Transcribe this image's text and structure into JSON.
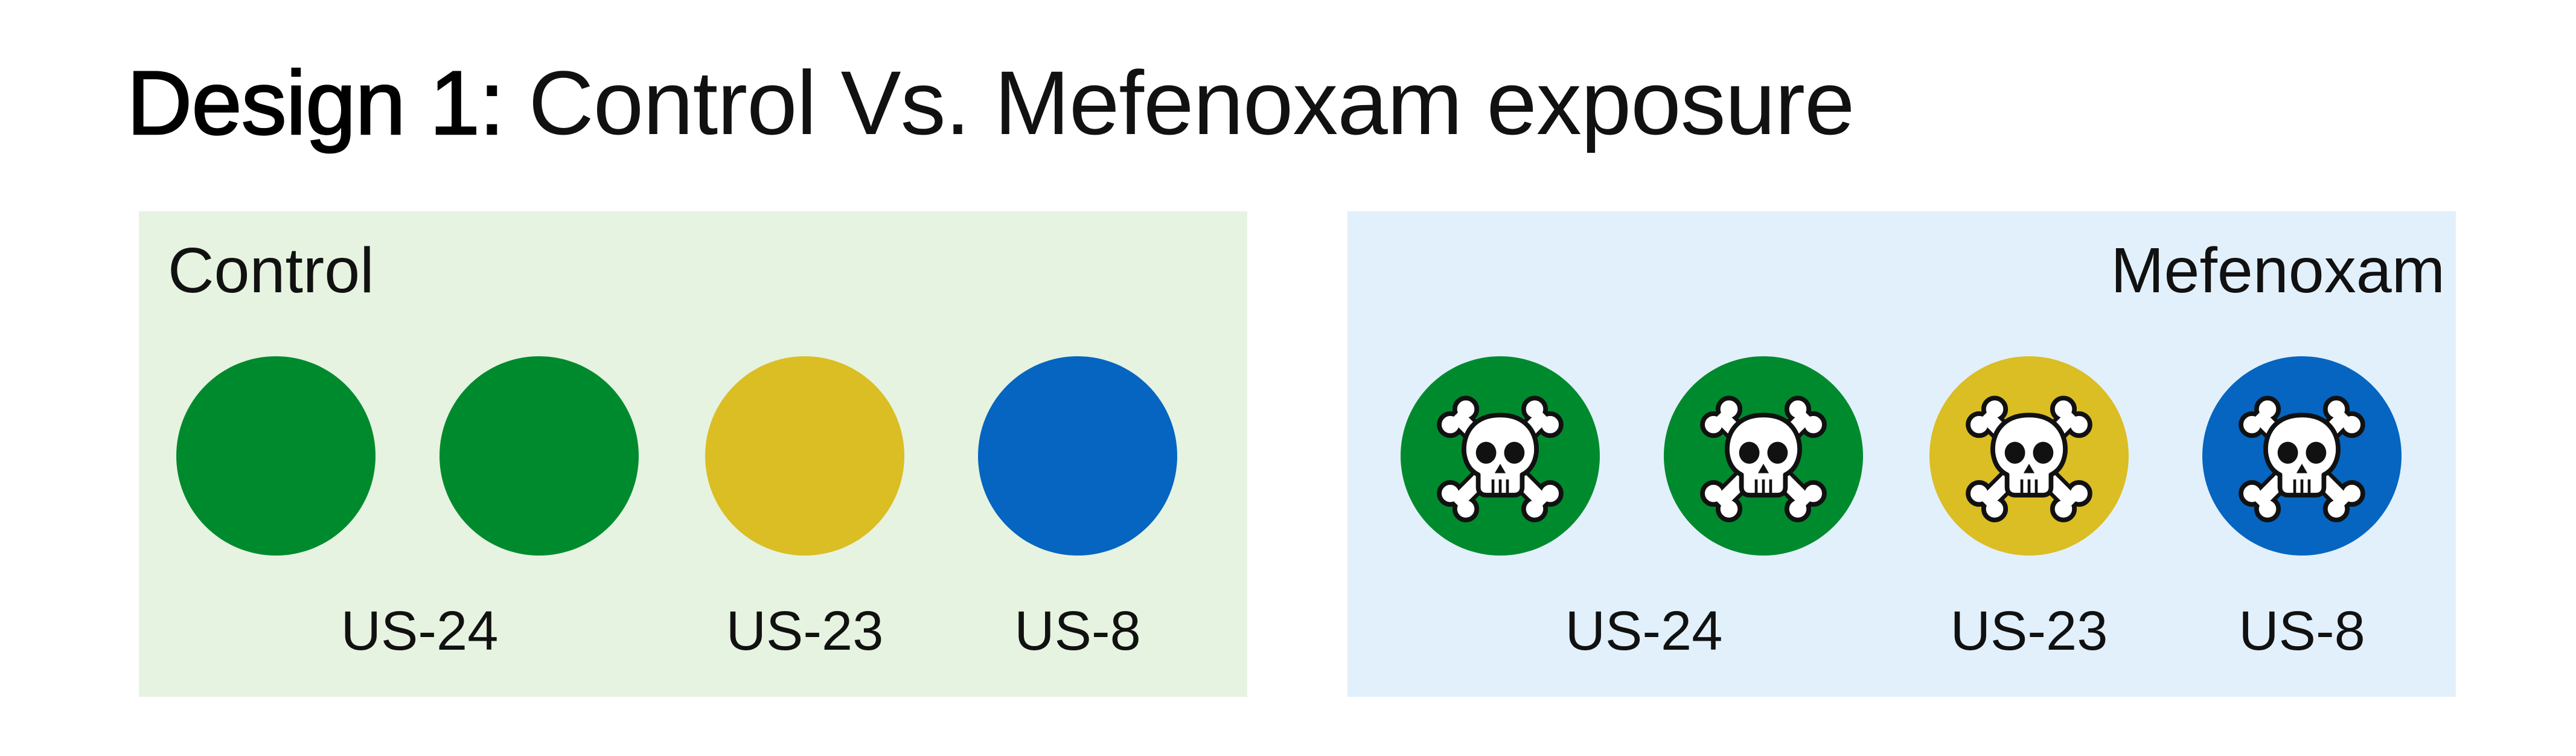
{
  "title": {
    "prefix": "Design 1:",
    "text": "Control Vs. Mefenoxam exposure"
  },
  "colors": {
    "control_panel_bg": "#e6f3e0",
    "mefenoxam_panel_bg": "#e2f0fb",
    "us24_green": "#008a2e",
    "us23_yellow": "#dbbd24",
    "us8_blue": "#0565c1"
  },
  "panels": [
    {
      "label": "Control",
      "treated": false,
      "circles": [
        {
          "strain": "US-24",
          "color": "#008a2e"
        },
        {
          "strain": "US-24",
          "color": "#008a2e"
        },
        {
          "strain": "US-23",
          "color": "#dbbd24"
        },
        {
          "strain": "US-8",
          "color": "#0565c1"
        }
      ],
      "strain_labels": [
        "US-24",
        "US-23",
        "US-8"
      ]
    },
    {
      "label": "Mefenoxam",
      "treated": true,
      "icon": "skull-and-crossbones-icon",
      "circles": [
        {
          "strain": "US-24",
          "color": "#008a2e"
        },
        {
          "strain": "US-24",
          "color": "#008a2e"
        },
        {
          "strain": "US-23",
          "color": "#dbbd24"
        },
        {
          "strain": "US-8",
          "color": "#0565c1"
        }
      ],
      "strain_labels": [
        "US-24",
        "US-23",
        "US-8"
      ]
    }
  ]
}
